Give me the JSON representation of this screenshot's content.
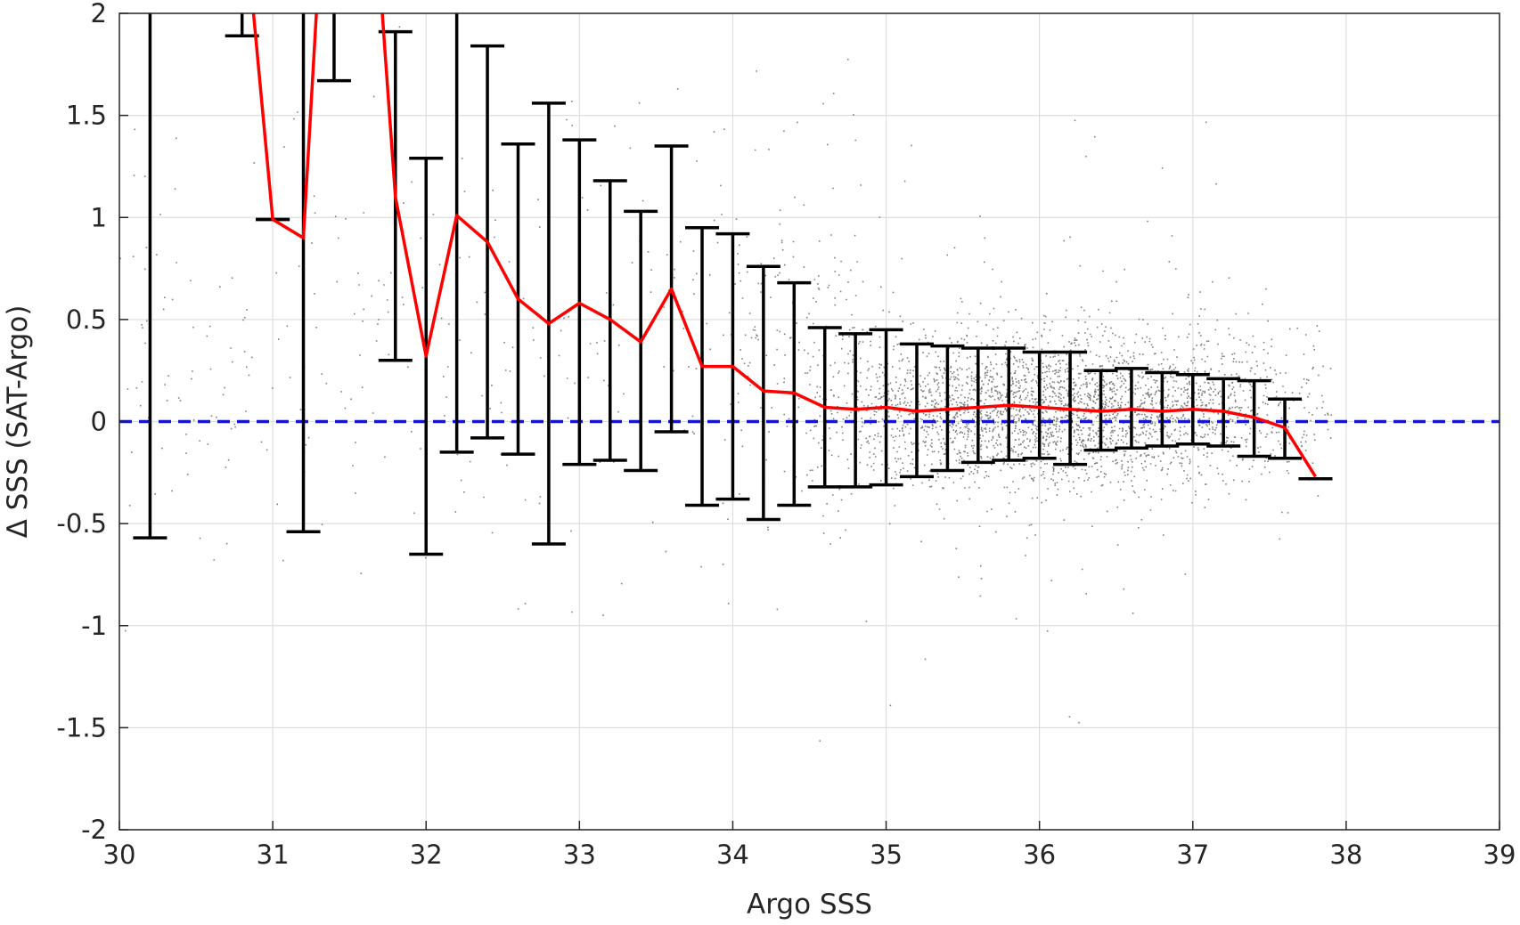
{
  "chart_data": {
    "type": "scatter",
    "title": "",
    "xlabel": "Argo SSS",
    "ylabel": "Δ SSS (SAT-Argo)",
    "xlim": [
      30,
      39
    ],
    "ylim": [
      -2,
      2
    ],
    "x_ticks": [
      "30",
      "31",
      "32",
      "33",
      "34",
      "35",
      "36",
      "37",
      "38",
      "39"
    ],
    "y_ticks": [
      "-2",
      "-1.5",
      "-1",
      "-0.5",
      "0",
      "0.5",
      "1",
      "1.5",
      "2"
    ],
    "grid": true,
    "legend": "none",
    "reference_line": {
      "y": 0,
      "style": "dashed",
      "color": "#1414d2"
    },
    "series": [
      {
        "type": "scatter",
        "color": "#808080",
        "description_count_approx": 30000
      },
      {
        "type": "line",
        "color": "#ff0000",
        "x": [
          30.8,
          31.0,
          31.2,
          31.4,
          31.6,
          31.8,
          32.0,
          32.2,
          32.4,
          32.6,
          32.8,
          33.0,
          33.2,
          33.4,
          33.6,
          33.8,
          34.0,
          34.2,
          34.4,
          34.6,
          34.8,
          35.0,
          35.2,
          35.4,
          35.6,
          35.8,
          36.0,
          36.2,
          36.4,
          36.6,
          36.8,
          37.0,
          37.2,
          37.4,
          37.6,
          37.8
        ],
        "y": [
          2.6,
          0.99,
          0.9,
          3.5,
          3.2,
          1.1,
          0.32,
          1.01,
          0.88,
          0.6,
          0.48,
          0.58,
          0.5,
          0.39,
          0.65,
          0.27,
          0.27,
          0.15,
          0.14,
          0.07,
          0.06,
          0.07,
          0.05,
          0.06,
          0.07,
          0.08,
          0.07,
          0.06,
          0.05,
          0.06,
          0.05,
          0.06,
          0.05,
          0.02,
          -0.03,
          -0.27
        ]
      },
      {
        "type": "errorbar",
        "color": "#000000",
        "x": [
          30.2,
          30.8,
          31.0,
          31.2,
          31.4,
          31.8,
          32.0,
          32.2,
          32.4,
          32.6,
          32.8,
          33.0,
          33.2,
          33.4,
          33.6,
          33.8,
          34.0,
          34.2,
          34.4,
          34.6,
          34.8,
          35.0,
          35.2,
          35.4,
          35.6,
          35.8,
          36.0,
          36.2,
          36.4,
          36.6,
          36.8,
          37.0,
          37.2,
          37.4,
          37.6,
          37.8
        ],
        "lower": [
          -0.57,
          1.89,
          0.99,
          -0.54,
          1.67,
          0.3,
          -0.65,
          -0.15,
          -0.08,
          -0.16,
          -0.6,
          -0.21,
          -0.19,
          -0.24,
          -0.05,
          -0.41,
          -0.38,
          -0.48,
          -0.41,
          -0.32,
          -0.32,
          -0.31,
          -0.27,
          -0.24,
          -0.2,
          -0.19,
          -0.18,
          -0.21,
          -0.14,
          -0.13,
          -0.12,
          -0.11,
          -0.12,
          -0.17,
          -0.18,
          -0.28
        ],
        "upper": [
          2.5,
          2.5,
          0.99,
          2.5,
          2.5,
          1.91,
          1.29,
          2.5,
          1.84,
          1.36,
          1.56,
          1.38,
          1.18,
          1.03,
          1.35,
          0.95,
          0.92,
          0.76,
          0.68,
          0.46,
          0.43,
          0.45,
          0.38,
          0.37,
          0.36,
          0.36,
          0.34,
          0.34,
          0.25,
          0.26,
          0.24,
          0.23,
          0.21,
          0.2,
          0.11,
          -0.28
        ]
      }
    ]
  }
}
